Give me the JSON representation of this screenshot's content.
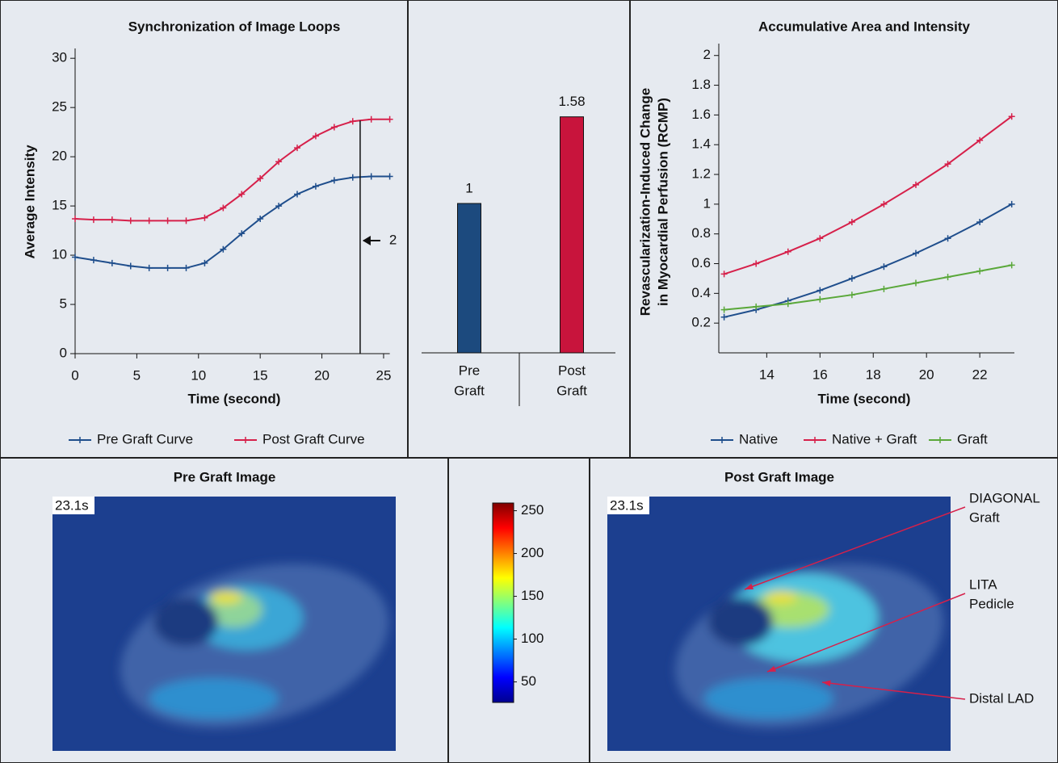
{
  "chart_data": [
    {
      "type": "line",
      "title": "Synchronization of Image Loops",
      "xlabel": "Time (second)",
      "ylabel": [
        "Average Intensity"
      ],
      "x": [
        0,
        1.5,
        3,
        4.5,
        6,
        7.5,
        9,
        10.5,
        12,
        13.5,
        15,
        16.5,
        18,
        19.5,
        21,
        22.5,
        24,
        25.5
      ],
      "series": [
        {
          "name": "Pre Graft Curve",
          "color": "#1f4e8c",
          "values": [
            9.8,
            9.5,
            9.2,
            8.9,
            8.7,
            8.7,
            8.7,
            9.2,
            10.6,
            12.2,
            13.7,
            15.0,
            16.2,
            17.0,
            17.6,
            17.9,
            18.0,
            18.0
          ]
        },
        {
          "name": "Post Graft Curve",
          "color": "#d6204a",
          "values": [
            13.7,
            13.6,
            13.6,
            13.5,
            13.5,
            13.5,
            13.5,
            13.8,
            14.8,
            16.2,
            17.8,
            19.5,
            20.9,
            22.1,
            23.0,
            23.6,
            23.8,
            23.8
          ]
        }
      ],
      "xlim": [
        0,
        25.5
      ],
      "ylim": [
        0,
        31
      ],
      "xticks": [
        0,
        5,
        10,
        15,
        20,
        25
      ],
      "yticks": [
        0,
        5,
        10,
        15,
        20,
        25,
        30
      ],
      "marker_x": 23.1,
      "marker_label": "2"
    },
    {
      "type": "bar",
      "categories": [
        [
          "Pre",
          "Graft"
        ],
        [
          "Post",
          "Graft"
        ]
      ],
      "values": [
        1,
        1.58
      ],
      "colors": [
        "#1c4a7e",
        "#c8143c"
      ]
    },
    {
      "type": "line",
      "title": "Accumulative Area and Intensity",
      "xlabel": "Time (second)",
      "ylabel": [
        "Revascularization-Induced Change",
        "in Myocardial Perfusion (RCMP)"
      ],
      "x": [
        12.4,
        13.6,
        14.8,
        16,
        17.2,
        18.4,
        19.6,
        20.8,
        22,
        23.2
      ],
      "series": [
        {
          "name": "Native",
          "color": "#1f4e8c",
          "values": [
            0.24,
            0.29,
            0.35,
            0.42,
            0.5,
            0.58,
            0.67,
            0.77,
            0.88,
            1.0
          ]
        },
        {
          "name": "Native + Graft",
          "color": "#d6204a",
          "values": [
            0.53,
            0.6,
            0.68,
            0.77,
            0.88,
            1.0,
            1.13,
            1.27,
            1.43,
            1.59
          ]
        },
        {
          "name": "Graft",
          "color": "#5aa83a",
          "values": [
            0.29,
            0.31,
            0.33,
            0.36,
            0.39,
            0.43,
            0.47,
            0.51,
            0.55,
            0.59
          ]
        }
      ],
      "xlim": [
        12.2,
        23.3
      ],
      "ylim": [
        0,
        2.08
      ],
      "xticks": [
        14,
        16,
        18,
        20,
        22
      ],
      "yticks": [
        0.2,
        0.4,
        0.6,
        0.8,
        1,
        1.2,
        1.4,
        1.6,
        1.8,
        2
      ]
    }
  ],
  "images": [
    {
      "title": "Pre Graft Image",
      "timestamp": "23.1s"
    },
    {
      "title": "Post Graft Image",
      "timestamp": "23.1s",
      "callouts": [
        [
          "DIAGONAL",
          "Graft"
        ],
        [
          "LITA",
          "Pedicle"
        ],
        [
          "Distal LAD"
        ]
      ]
    }
  ],
  "colorbar": {
    "clim": [
      26,
      259
    ],
    "ticks": [
      50,
      100,
      150,
      200,
      250
    ]
  }
}
